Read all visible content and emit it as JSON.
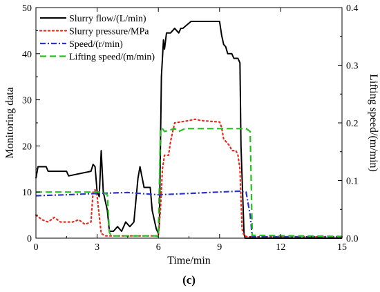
{
  "figure_label": "(c)",
  "chart_data": {
    "type": "line",
    "xlabel": "Time/min",
    "ylabel_left": "Monitoring data",
    "ylabel_right": "Lifting speed/(m/min)",
    "xlim": [
      0,
      15
    ],
    "ylim_left": [
      0,
      50
    ],
    "ylim_right": [
      0,
      0.4
    ],
    "x_ticks": [
      0,
      3,
      6,
      9,
      12,
      15
    ],
    "y_ticks_left": [
      0,
      10,
      20,
      30,
      40,
      50
    ],
    "y_ticks_right": [
      0.0,
      0.1,
      0.2,
      0.3,
      0.4
    ],
    "grid": false,
    "legend_position": "top-left",
    "series": [
      {
        "name": "Slurry flow/(L/min)",
        "axis": "left",
        "color": "#000000",
        "dash": "solid",
        "x": [
          0,
          0.1,
          0.2,
          0.5,
          0.6,
          1.5,
          1.6,
          2.7,
          2.8,
          2.9,
          3.0,
          3.1,
          3.2,
          3.3,
          3.5,
          3.6,
          3.8,
          4.0,
          4.2,
          4.4,
          4.6,
          4.8,
          5.0,
          5.1,
          5.3,
          5.6,
          5.7,
          5.9,
          6.0,
          6.05,
          6.15,
          6.25,
          6.3,
          6.4,
          6.6,
          6.8,
          7.0,
          7.1,
          7.2,
          7.6,
          7.8,
          8.0,
          8.1,
          9.0,
          9.1,
          9.2,
          9.3,
          9.4,
          9.6,
          9.7,
          9.9,
          10.0,
          10.05,
          10.2,
          10.25,
          10.35,
          10.6,
          15.0
        ],
        "y": [
          13,
          15.5,
          15.5,
          15.5,
          14.5,
          14.5,
          13.5,
          14.5,
          16,
          15.5,
          10,
          9,
          19,
          10,
          6,
          1.5,
          1.5,
          2.5,
          1.5,
          3.5,
          2.5,
          3.5,
          13,
          15.5,
          11,
          11,
          6,
          2,
          1,
          3,
          35,
          43,
          41,
          44.5,
          44.5,
          45.5,
          44.5,
          45.5,
          45.5,
          47,
          47,
          47,
          47,
          47,
          44,
          42,
          41.5,
          40,
          40,
          39,
          39,
          38,
          20,
          1,
          0,
          0,
          0,
          0
        ]
      },
      {
        "name": "Slurry pressure/MPa",
        "axis": "left",
        "color": "#e8291c",
        "dash": "dot",
        "x": [
          0,
          0.3,
          0.6,
          0.9,
          1.2,
          1.5,
          1.8,
          2.1,
          2.4,
          2.7,
          2.8,
          2.9,
          3.0,
          3.2,
          3.4,
          6.0,
          6.1,
          6.2,
          6.3,
          6.5,
          6.6,
          6.8,
          7.5,
          7.8,
          8.1,
          9.0,
          9.1,
          9.2,
          9.5,
          9.6,
          9.7,
          9.8,
          9.9,
          10.0,
          10.1,
          10.2,
          10.4,
          15.0
        ],
        "y": [
          5,
          4,
          3.5,
          4.5,
          3.5,
          3.5,
          3.5,
          4,
          3,
          3.5,
          10,
          10.5,
          9,
          1,
          0.5,
          0.5,
          6,
          15,
          18,
          18,
          21,
          25,
          25.5,
          25.8,
          25.5,
          25.2,
          24,
          21.5,
          20,
          19,
          19,
          19,
          18,
          15,
          2,
          0.5,
          0.3,
          0.3
        ]
      },
      {
        "name": "Speed/(r/min)",
        "axis": "left",
        "color": "#2a35c7",
        "dash": "dashdot",
        "x": [
          0,
          1.5,
          3.0,
          4.5,
          6.0,
          7.5,
          9.0,
          10.0,
          10.3,
          10.5,
          10.6,
          15.0
        ],
        "y": [
          9.2,
          9.4,
          9.7,
          9.9,
          9.4,
          9.7,
          10.0,
          10.2,
          10.0,
          5.0,
          0.3,
          0.3
        ]
      },
      {
        "name": "Lifting speed/(m/min)",
        "axis": "right",
        "color": "#23c11e",
        "dash": "dash",
        "x": [
          0,
          3.3,
          3.5,
          3.6,
          3.7,
          5.9,
          6.0,
          6.1,
          6.2,
          6.3,
          6.8,
          7.0,
          7.3,
          10.3,
          10.5,
          10.6,
          15.0
        ],
        "y": [
          0.08,
          0.08,
          0.075,
          0.01,
          0.004,
          0.004,
          0.003,
          0.19,
          0.19,
          0.185,
          0.19,
          0.185,
          0.19,
          0.19,
          0.185,
          0.005,
          0.003
        ]
      }
    ]
  }
}
